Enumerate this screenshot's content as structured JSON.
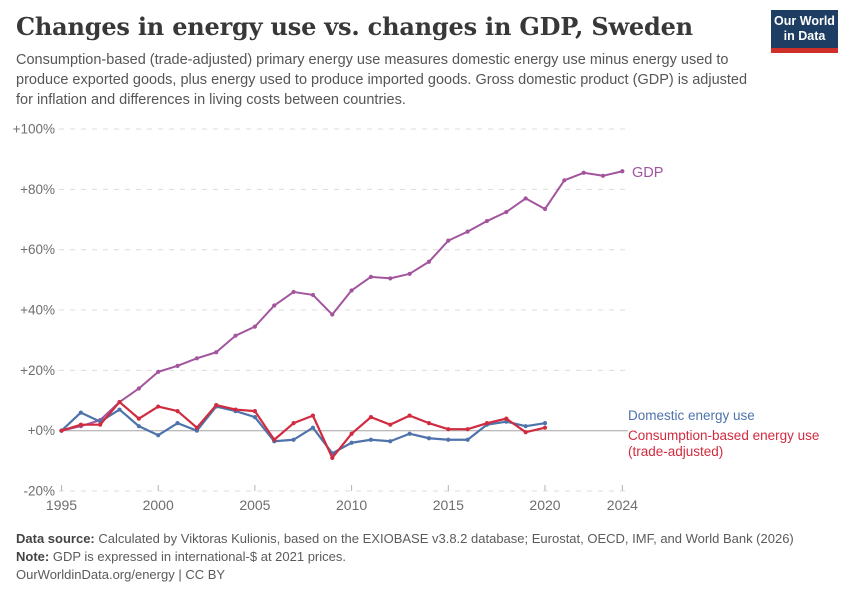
{
  "header": {
    "title": "Changes in energy use vs. changes in GDP, Sweden",
    "subtitle": "Consumption-based (trade-adjusted) primary energy use measures domestic energy use minus energy used to produce exported goods, plus energy used to produce imported goods. Gross domestic product (GDP) is adjusted for inflation and differences in living costs between countries.",
    "logo": {
      "line1": "Our World",
      "line2": "in Data",
      "bg_color": "#1d3d63",
      "accent_color": "#cf2f29"
    }
  },
  "chart_data": {
    "type": "line",
    "title": "Changes in energy use vs. changes in GDP, Sweden",
    "xlabel": "",
    "ylabel": "",
    "ylim": [
      -20,
      100
    ],
    "xlim": [
      1995,
      2024
    ],
    "grid": "horizontal-dashed, zero-line-solid",
    "legend_position": "end-of-line labels",
    "yticks": [
      {
        "value": 100,
        "label": "+100%"
      },
      {
        "value": 80,
        "label": "+80%"
      },
      {
        "value": 60,
        "label": "+60%"
      },
      {
        "value": 40,
        "label": "+40%"
      },
      {
        "value": 20,
        "label": "+20%"
      },
      {
        "value": 0,
        "label": "+0%"
      },
      {
        "value": -20,
        "label": "-20%"
      }
    ],
    "xticks": [
      {
        "value": 1995,
        "label": "1995"
      },
      {
        "value": 2000,
        "label": "2000"
      },
      {
        "value": 2005,
        "label": "2005"
      },
      {
        "value": 2010,
        "label": "2010"
      },
      {
        "value": 2015,
        "label": "2015"
      },
      {
        "value": 2020,
        "label": "2020"
      },
      {
        "value": 2024,
        "label": "2024"
      }
    ],
    "series": [
      {
        "name": "GDP",
        "label_lines": [
          "GDP"
        ],
        "color": "#a2559c",
        "x": [
          1995,
          1996,
          1997,
          1998,
          1999,
          2000,
          2001,
          2002,
          2003,
          2004,
          2005,
          2006,
          2007,
          2008,
          2009,
          2010,
          2011,
          2012,
          2013,
          2014,
          2015,
          2016,
          2017,
          2018,
          2019,
          2020,
          2021,
          2022,
          2023,
          2024
        ],
        "values": [
          0,
          1.5,
          3.5,
          9.5,
          14,
          19.5,
          21.5,
          24,
          26,
          31.5,
          34.5,
          41.5,
          46,
          45,
          38.5,
          46.5,
          51,
          50.5,
          52,
          56,
          63,
          66,
          69.5,
          72.5,
          77,
          73.5,
          83,
          85.5,
          84.5,
          86
        ]
      },
      {
        "name": "Domestic energy use",
        "label_lines": [
          "Domestic energy use"
        ],
        "color": "#4e73ab",
        "x": [
          1995,
          1996,
          1997,
          1998,
          1999,
          2000,
          2001,
          2002,
          2003,
          2004,
          2005,
          2006,
          2007,
          2008,
          2009,
          2010,
          2011,
          2012,
          2013,
          2014,
          2015,
          2016,
          2017,
          2018,
          2019,
          2020
        ],
        "values": [
          0,
          6,
          3,
          7,
          1.5,
          -1.5,
          2.5,
          0,
          8,
          6.5,
          4.5,
          -3.5,
          -3,
          1,
          -7.5,
          -4,
          -3,
          -3.5,
          -1,
          -2.5,
          -3,
          -3,
          2,
          3,
          1.5,
          2.5
        ]
      },
      {
        "name": "Consumption-based energy use (trade-adjusted)",
        "label_lines": [
          "Consumption-based energy use",
          "(trade-adjusted)"
        ],
        "color": "#d12b3f",
        "x": [
          1995,
          1996,
          1997,
          1998,
          1999,
          2000,
          2001,
          2002,
          2003,
          2004,
          2005,
          2006,
          2007,
          2008,
          2009,
          2010,
          2011,
          2012,
          2013,
          2014,
          2015,
          2016,
          2017,
          2018,
          2019,
          2020
        ],
        "values": [
          0,
          2,
          2,
          9.5,
          4,
          8,
          6.5,
          1,
          8.5,
          7,
          6.5,
          -3,
          2.5,
          5,
          -9,
          -1,
          4.5,
          2,
          5,
          2.5,
          0.5,
          0.5,
          2.5,
          4,
          -0.5,
          1
        ]
      }
    ]
  },
  "footer": {
    "source_label": "Data source:",
    "source_text": "Calculated by Viktoras Kulionis, based on the EXIOBASE v3.8.2 database; Eurostat, OECD, IMF, and World Bank (2026)",
    "note_label": "Note:",
    "note_text": "GDP is expressed in international-$ at 2021 prices.",
    "url_line": "OurWorldinData.org/energy | CC BY"
  }
}
